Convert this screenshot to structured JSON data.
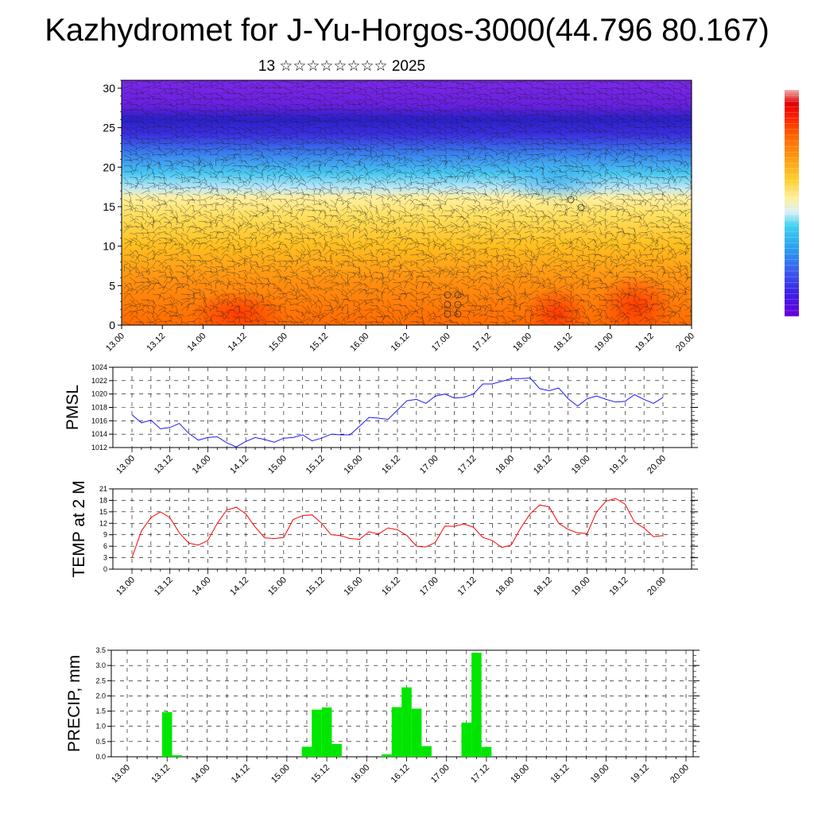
{
  "title": "Kazhydromet for J-Yu-Horgos-3000(44.796 80.167)",
  "subtitle": "13 ☆☆☆☆☆☆☆☆ 2025",
  "colors": {
    "pmsl_line": "#1a1aff",
    "temp_line": "#ff0000",
    "precip_bar": "#00e600",
    "colormap": [
      "#6a00d8",
      "#3c1fe6",
      "#3a5cf0",
      "#2aa0f0",
      "#40d0f0",
      "#d8f0f8",
      "#fff0a0",
      "#ffd030",
      "#ff9a10",
      "#ff6000",
      "#ff2000",
      "#e00000",
      "#f0a0a0"
    ]
  },
  "chart_data": [
    {
      "id": "cross-section",
      "type": "heatmap",
      "description": "vertical time-height colored field with wind barbs",
      "y_ticks": [
        "0",
        "5",
        "10",
        "15",
        "20",
        "25",
        "30"
      ],
      "x_ticks": [
        "13.00",
        "13.12",
        "14.00",
        "14.12",
        "15.00",
        "15.12",
        "16.00",
        "16.12",
        "17.00",
        "17.12",
        "18.00",
        "18.12",
        "19.00",
        "19.12",
        "20.00"
      ],
      "ylim": [
        0,
        31
      ]
    },
    {
      "id": "pmsl",
      "type": "line",
      "ylabel": "PMSL",
      "ylim": [
        1012,
        1024
      ],
      "y_ticks": [
        "1012",
        "1014",
        "1016",
        "1018",
        "1020",
        "1022",
        "1024"
      ],
      "x_ticks": [
        "13.00",
        "13.12",
        "14.00",
        "14.12",
        "15.00",
        "15.12",
        "16.00",
        "16.12",
        "17.00",
        "17.12",
        "18.00",
        "18.12",
        "19.00",
        "19.12",
        "20.00"
      ],
      "x_step_hours": 3,
      "values": [
        1016.9,
        1015.7,
        1016.1,
        1014.8,
        1015.0,
        1015.6,
        1014.1,
        1013.1,
        1013.5,
        1013.6,
        1012.7,
        1012.1,
        1012.9,
        1013.5,
        1013.2,
        1012.8,
        1013.4,
        1013.5,
        1013.9,
        1013.0,
        1013.4,
        1014.0,
        1013.9,
        1013.9,
        1015.2,
        1016.5,
        1016.4,
        1016.2,
        1017.6,
        1019.0,
        1019.2,
        1018.6,
        1019.7,
        1020.0,
        1019.4,
        1019.5,
        1020.0,
        1021.5,
        1021.5,
        1021.9,
        1022.3,
        1022.3,
        1022.4,
        1020.8,
        1020.5,
        1020.9,
        1019.3,
        1018.2,
        1019.3,
        1019.7,
        1019.2,
        1018.8,
        1018.9,
        1019.9,
        1019.2,
        1018.6,
        1019.5
      ]
    },
    {
      "id": "temp",
      "type": "line",
      "ylabel": "TEMP at 2 M",
      "ylim": [
        0,
        21
      ],
      "y_ticks": [
        "0",
        "3",
        "6",
        "9",
        "12",
        "15",
        "18",
        "21"
      ],
      "x_ticks": [
        "13.00",
        "13.12",
        "14.00",
        "14.12",
        "15.00",
        "15.12",
        "16.00",
        "16.12",
        "17.00",
        "17.12",
        "18.00",
        "18.12",
        "19.00",
        "19.12",
        "20.00"
      ],
      "x_step_hours": 3,
      "values": [
        3.0,
        10.0,
        13.5,
        15.0,
        13.5,
        9.5,
        6.8,
        6.3,
        7.5,
        12.0,
        15.5,
        16.2,
        14.5,
        11.0,
        8.2,
        8.0,
        8.3,
        13.0,
        14.0,
        14.2,
        12.0,
        9.0,
        8.8,
        8.0,
        7.8,
        9.8,
        9.2,
        10.8,
        10.3,
        8.8,
        6.0,
        5.8,
        7.0,
        11.3,
        11.2,
        11.8,
        11.0,
        8.3,
        7.5,
        5.7,
        6.3,
        10.8,
        14.5,
        16.8,
        16.3,
        12.0,
        10.4,
        9.5,
        9.3,
        15.0,
        17.8,
        18.5,
        17.0,
        12.3,
        10.8,
        8.5,
        8.8
      ]
    },
    {
      "id": "precip",
      "type": "bar",
      "ylabel": "PRECIP, mm",
      "ylim": [
        0,
        3.5
      ],
      "y_ticks": [
        "0.0",
        "0.5",
        "1.0",
        "1.5",
        "2.0",
        "2.5",
        "3.0",
        "3.5"
      ],
      "x_ticks": [
        "13.00",
        "13.12",
        "14.00",
        "14.12",
        "15.00",
        "15.12",
        "16.00",
        "16.12",
        "17.00",
        "17.12",
        "18.00",
        "18.12",
        "19.00",
        "19.12",
        "20.00"
      ],
      "x_step_hours": 3,
      "bars": [
        {
          "index": 4,
          "value": 1.47
        },
        {
          "index": 5,
          "value": 0.05
        },
        {
          "index": 18,
          "value": 0.33
        },
        {
          "index": 19,
          "value": 1.55
        },
        {
          "index": 20,
          "value": 1.62
        },
        {
          "index": 21,
          "value": 0.42
        },
        {
          "index": 26,
          "value": 0.08
        },
        {
          "index": 27,
          "value": 1.63
        },
        {
          "index": 28,
          "value": 2.28
        },
        {
          "index": 29,
          "value": 1.58
        },
        {
          "index": 30,
          "value": 0.35
        },
        {
          "index": 34,
          "value": 1.12
        },
        {
          "index": 35,
          "value": 3.42
        },
        {
          "index": 36,
          "value": 0.32
        }
      ]
    }
  ]
}
